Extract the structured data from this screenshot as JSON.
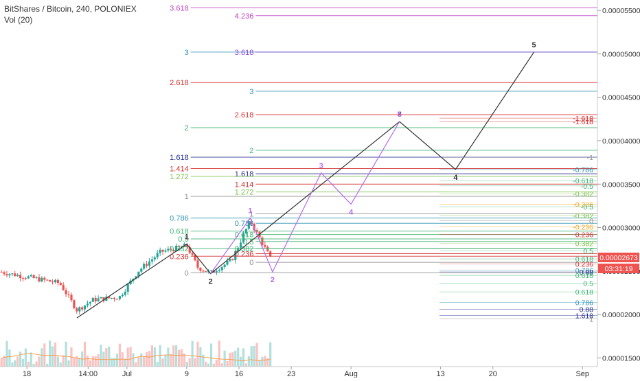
{
  "header": {
    "title": "BitShares / Bitcoin, 240, POLONIEX",
    "indicator": "Vol (20)"
  },
  "price_badge": {
    "price": "0.00002673",
    "countdown": "03:31:19",
    "color": "#ef5350"
  },
  "chart_data": {
    "type": "line",
    "title": "BitShares / Bitcoin, 240, POLONIEX",
    "x_axis": {
      "ticks": [
        {
          "label": "18",
          "x": 3.6
        },
        {
          "label": "14:00",
          "x": 11.8
        },
        {
          "label": "Jul",
          "x": 17.0
        },
        {
          "label": "9",
          "x": 25.0
        },
        {
          "label": "16",
          "x": 32.0
        },
        {
          "label": "23",
          "x": 39.0
        },
        {
          "label": "Aug",
          "x": 47.0
        },
        {
          "label": "13",
          "x": 59.0
        },
        {
          "label": "20",
          "x": 66.0
        },
        {
          "label": "Sep",
          "x": 78.0
        }
      ],
      "range": [
        0,
        80
      ]
    },
    "y_axis": {
      "ticks": [
        "0.00005500",
        "0.00005000",
        "0.00004500",
        "0.00004000",
        "0.00003500",
        "0.00003000",
        "0.00002500",
        "0.00002000",
        "0.00001500"
      ],
      "tick_values": [
        5.5,
        5.0,
        4.5,
        4.0,
        3.5,
        3.0,
        2.5,
        2.0,
        1.5
      ],
      "range": [
        1.4,
        5.62
      ]
    },
    "grid": false,
    "colors": {
      "up": "#26a69a",
      "down": "#ef5350",
      "wave_main": "#333333",
      "wave_alt": "#b36bf0"
    },
    "waves": [
      {
        "name": "main count",
        "color": "#333333",
        "points": [
          {
            "x": 10.3,
            "y": 1.96,
            "label": ""
          },
          {
            "x": 25.0,
            "y": 2.81,
            "label": "1"
          },
          {
            "x": 28.2,
            "y": 2.47,
            "label": "2"
          },
          {
            "x": 53.5,
            "y": 4.22,
            "label": "3"
          },
          {
            "x": 61.0,
            "y": 3.67,
            "label": "4"
          },
          {
            "x": 71.5,
            "y": 5.02,
            "label": "5"
          }
        ]
      },
      {
        "name": "alt count",
        "color": "#b36bf0",
        "points": [
          {
            "x": 28.2,
            "y": 2.47,
            "label": ""
          },
          {
            "x": 33.5,
            "y": 3.11,
            "label": "1"
          },
          {
            "x": 36.5,
            "y": 2.49,
            "label": "2"
          },
          {
            "x": 43.0,
            "y": 3.63,
            "label": "3"
          },
          {
            "x": 47.0,
            "y": 3.27,
            "label": "4"
          },
          {
            "x": 53.5,
            "y": 4.22,
            "label": "5"
          }
        ]
      }
    ],
    "fib_levels": [
      {
        "label": "3.618",
        "y": 5.53,
        "color": "#c041c0",
        "x": 24.8
      },
      {
        "label": "4.236",
        "y": 5.44,
        "color": "#c041c0",
        "x": 33.5
      },
      {
        "label": "3",
        "y": 5.02,
        "color": "#2e93b3",
        "x": 24.8
      },
      {
        "label": "3.618",
        "y": 5.02,
        "color": "#8d47d6",
        "x": 33.5
      },
      {
        "label": "2.618",
        "y": 4.67,
        "color": "#d32f2f",
        "x": 24.8
      },
      {
        "label": "3",
        "y": 4.57,
        "color": "#2e93b3",
        "x": 33.5
      },
      {
        "label": "2.618",
        "y": 4.3,
        "color": "#d32f2f",
        "x": 33.5
      },
      {
        "label": "2",
        "y": 4.15,
        "color": "#3cb371",
        "x": 24.8
      },
      {
        "label": "2",
        "y": 3.89,
        "color": "#3cb371",
        "x": 33.5
      },
      {
        "label": "1.618",
        "y": 3.81,
        "color": "#1f2a8c",
        "x": 24.8
      },
      {
        "label": "1.414",
        "y": 3.68,
        "color": "#d32f2f",
        "x": 24.8
      },
      {
        "label": "1.618",
        "y": 3.62,
        "color": "#1f2a8c",
        "x": 33.5
      },
      {
        "label": "1.272",
        "y": 3.59,
        "color": "#7cc24a",
        "x": 24.8
      },
      {
        "label": "1.414",
        "y": 3.5,
        "color": "#d32f2f",
        "x": 33.5
      },
      {
        "label": "1.272",
        "y": 3.41,
        "color": "#7cc24a",
        "x": 33.5
      },
      {
        "label": "1",
        "y": 3.36,
        "color": "#8e8e8e",
        "x": 24.8
      },
      {
        "label": "1",
        "y": 3.16,
        "color": "#8e8e8e",
        "x": 33.5
      },
      {
        "label": "0.786",
        "y": 3.11,
        "color": "#2e93b3",
        "x": 24.8
      },
      {
        "label": "0.786",
        "y": 3.05,
        "color": "#2e93b3",
        "x": 33.5
      },
      {
        "label": "0.618",
        "y": 2.96,
        "color": "#3cb371",
        "x": 24.8
      },
      {
        "label": "0.618",
        "y": 2.92,
        "color": "#3cb371",
        "x": 33.5
      },
      {
        "label": "0.5",
        "y": 2.87,
        "color": "#3cb371",
        "x": 24.8
      },
      {
        "label": "0.5",
        "y": 2.84,
        "color": "#3cb371",
        "x": 33.5
      },
      {
        "label": "0.382",
        "y": 2.76,
        "color": "#3cb371",
        "x": 24.8
      },
      {
        "label": "0.382",
        "y": 2.76,
        "color": "#3cb371",
        "x": 33.5
      },
      {
        "label": "0.236",
        "y": 2.67,
        "color": "#d32f2f",
        "x": 24.8
      },
      {
        "label": "0.236",
        "y": 2.7,
        "color": "#d32f2f",
        "x": 33.5
      },
      {
        "label": "0",
        "y": 2.48,
        "color": "#8e8e8e",
        "x": 24.8
      },
      {
        "label": "0",
        "y": 2.6,
        "color": "#8e8e8e",
        "x": 33.5
      }
    ],
    "right_labels": [
      {
        "label": "-1.618",
        "y": 4.26,
        "color": "#d32f2f"
      },
      {
        "label": "-1.618",
        "y": 4.22,
        "color": "#d32f2f"
      },
      {
        "label": "-1",
        "y": 3.81,
        "color": "#8e8e8e"
      },
      {
        "label": "-0.786",
        "y": 3.67,
        "color": "#2e93b3"
      },
      {
        "label": "-0.618",
        "y": 3.54,
        "color": "#3cb371"
      },
      {
        "label": "-0.5",
        "y": 3.48,
        "color": "#3cb371"
      },
      {
        "label": "-0.382",
        "y": 3.39,
        "color": "#7cc24a"
      },
      {
        "label": "-0.236",
        "y": 3.27,
        "color": "#f5a623"
      },
      {
        "label": "-0.5",
        "y": 3.24,
        "color": "#3cb371"
      },
      {
        "label": "-0.382",
        "y": 3.14,
        "color": "#7cc24a"
      },
      {
        "label": "0",
        "y": 3.08,
        "color": "#8e8e8e"
      },
      {
        "label": "-0.236",
        "y": 3.01,
        "color": "#f5a623"
      },
      {
        "label": "0.236",
        "y": 2.92,
        "color": "#d32f2f"
      },
      {
        "label": "0.382",
        "y": 2.82,
        "color": "#7cc24a"
      },
      {
        "label": "0.5",
        "y": 2.73,
        "color": "#3cb371"
      },
      {
        "label": "0.618",
        "y": 2.64,
        "color": "#3cb371"
      },
      {
        "label": "0.236",
        "y": 2.58,
        "color": "#d32f2f"
      },
      {
        "label": "0.786",
        "y": 2.51,
        "color": "#2e93b3"
      },
      {
        "label": "0.88",
        "y": 2.49,
        "color": "#1f2a8c"
      },
      {
        "label": "0.618",
        "y": 2.45,
        "color": "#3cb371"
      },
      {
        "label": "0.5",
        "y": 2.36,
        "color": "#3cb371"
      },
      {
        "label": "0.618",
        "y": 2.26,
        "color": "#3cb371"
      },
      {
        "label": "0.786",
        "y": 2.14,
        "color": "#2e93b3"
      },
      {
        "label": "0.88",
        "y": 2.06,
        "color": "#1f2a8c"
      },
      {
        "label": "1.618",
        "y": 1.99,
        "color": "#1f2a8c"
      },
      {
        "label": "1",
        "y": 1.95,
        "color": "#8e8e8e"
      }
    ]
  }
}
